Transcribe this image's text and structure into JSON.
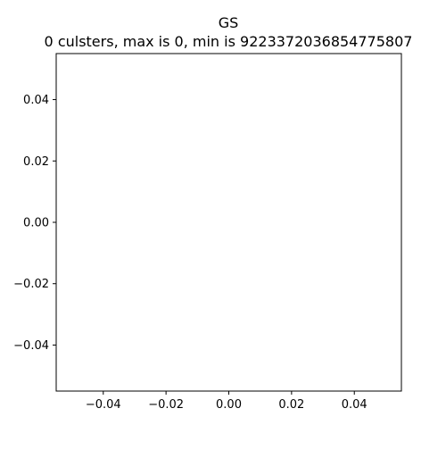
{
  "chart_data": {
    "type": "scatter",
    "title": "GS",
    "subtitle": "0 culsters, max is 0, min is 9223372036854775807",
    "xlabel": "",
    "ylabel": "",
    "xlim": [
      -0.055,
      0.055
    ],
    "ylim": [
      -0.055,
      0.055
    ],
    "xticks": [
      -0.04,
      -0.02,
      0.0,
      0.02,
      0.04
    ],
    "yticks": [
      -0.04,
      -0.02,
      0.0,
      0.02,
      0.04
    ],
    "xtick_labels": [
      "−0.04",
      "−0.02",
      "0.00",
      "0.02",
      "0.04"
    ],
    "ytick_labels": [
      "−0.04",
      "−0.02",
      "0.00",
      "0.02",
      "0.04"
    ],
    "grid": false,
    "legend": "none",
    "series": [
      {
        "x": [],
        "y": []
      }
    ]
  }
}
